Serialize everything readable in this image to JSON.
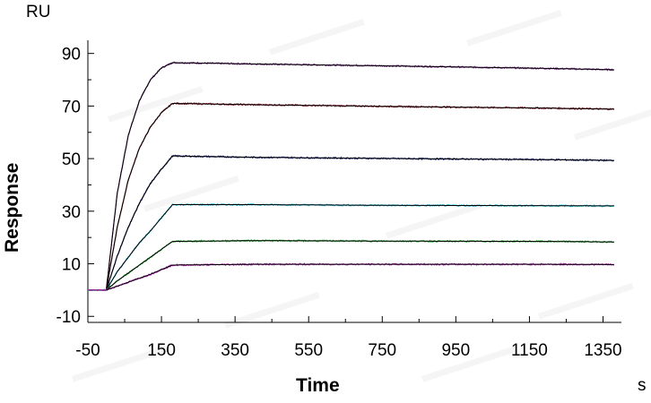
{
  "chart_data": {
    "type": "line",
    "title": "",
    "xlabel": "Time",
    "ylabel": "Response",
    "x_unit": "s",
    "y_unit": "RU",
    "xlim": [
      -50,
      1400
    ],
    "ylim": [
      -10,
      95
    ],
    "x_ticks": [
      -50,
      150,
      350,
      550,
      750,
      950,
      1150,
      1350
    ],
    "y_ticks": [
      -10,
      10,
      30,
      50,
      70,
      90
    ],
    "x_tick_labels": [
      "-50",
      "150",
      "350",
      "550",
      "750",
      "950",
      "1150",
      "1350"
    ],
    "y_tick_labels": [
      "-10",
      "10",
      "30",
      "50",
      "70",
      "90"
    ],
    "grid": false,
    "legend": "none",
    "injection_start": 0,
    "injection_end": 180,
    "series": [
      {
        "color": "#7b2d8c",
        "fit_color": "#000000",
        "x": [
          -50,
          0,
          30,
          60,
          90,
          120,
          150,
          180,
          400,
          800,
          1200,
          1380
        ],
        "y": [
          0,
          0,
          37,
          59,
          72,
          80,
          84.5,
          86.5,
          86.0,
          85.2,
          84.3,
          83.8
        ]
      },
      {
        "color": "#8b1e2b",
        "fit_color": "#000000",
        "x": [
          -50,
          0,
          30,
          60,
          90,
          120,
          150,
          180,
          400,
          800,
          1200,
          1380
        ],
        "y": [
          0,
          0,
          24,
          42,
          54,
          62,
          67.5,
          71,
          70.5,
          69.8,
          69.2,
          68.8
        ]
      },
      {
        "color": "#1f2a7a",
        "fit_color": "#000000",
        "x": [
          -50,
          0,
          30,
          60,
          90,
          120,
          150,
          180,
          400,
          800,
          1200,
          1380
        ],
        "y": [
          0,
          0,
          13,
          24,
          33,
          40.5,
          46,
          51,
          50.5,
          50.0,
          49.6,
          49.3
        ]
      },
      {
        "color": "#22b8d6",
        "fit_color": "#000000",
        "x": [
          -50,
          0,
          30,
          60,
          90,
          120,
          150,
          180,
          400,
          800,
          1200,
          1380
        ],
        "y": [
          0,
          0,
          7,
          12.5,
          18,
          22.5,
          27.5,
          32.5,
          32.5,
          32.2,
          32.1,
          32.0
        ]
      },
      {
        "color": "#2eae3a",
        "fit_color": "#000000",
        "x": [
          -50,
          0,
          30,
          60,
          90,
          120,
          150,
          180,
          400,
          800,
          1200,
          1380
        ],
        "y": [
          0,
          0,
          3.5,
          6.5,
          9.5,
          12.5,
          15.5,
          18.5,
          18.8,
          18.6,
          18.5,
          18.3
        ]
      },
      {
        "color": "#b01eb0",
        "fit_color": "#000000",
        "x": [
          -50,
          0,
          30,
          60,
          90,
          120,
          150,
          180,
          400,
          800,
          1200,
          1380
        ],
        "y": [
          0,
          0,
          1.5,
          3,
          4.5,
          6,
          7.8,
          9.5,
          9.8,
          9.8,
          9.8,
          9.7
        ]
      }
    ]
  }
}
